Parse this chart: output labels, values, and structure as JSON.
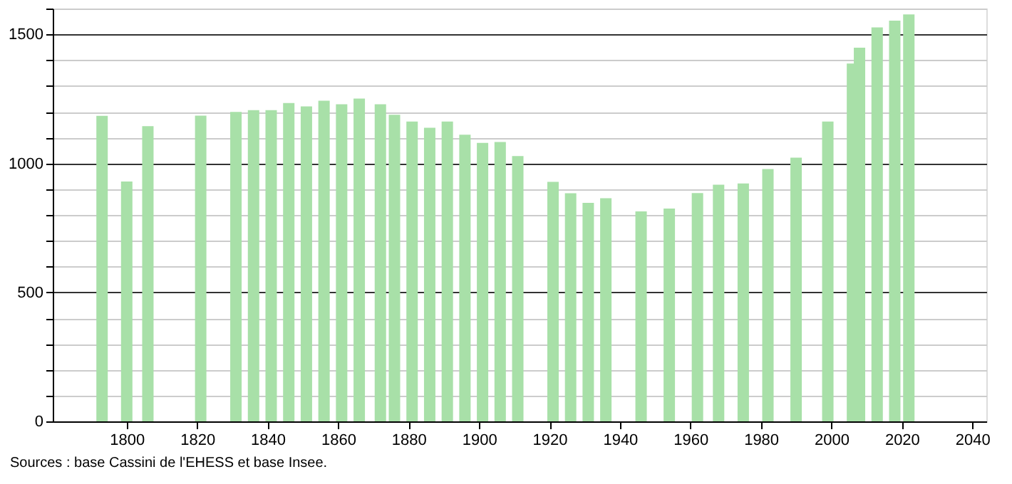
{
  "chart_data": {
    "type": "bar",
    "x": [
      1793,
      1800,
      1806,
      1821,
      1831,
      1836,
      1841,
      1846,
      1851,
      1856,
      1861,
      1866,
      1872,
      1876,
      1881,
      1886,
      1891,
      1896,
      1901,
      1906,
      1911,
      1921,
      1926,
      1931,
      1936,
      1946,
      1954,
      1962,
      1968,
      1975,
      1982,
      1990,
      1999,
      2006,
      2008,
      2013,
      2018,
      2022
    ],
    "values": [
      1184,
      930,
      1144,
      1185,
      1199,
      1206,
      1206,
      1234,
      1221,
      1243,
      1229,
      1251,
      1229,
      1188,
      1162,
      1138,
      1162,
      1111,
      1079,
      1083,
      1028,
      928,
      884,
      847,
      865,
      814,
      825,
      885,
      917,
      922,
      978,
      1022,
      1162,
      1387,
      1448,
      1527,
      1553,
      1577
    ],
    "color": "#a8e0a8",
    "xlim": [
      1779,
      2044
    ],
    "xticks": [
      1800,
      1820,
      1840,
      1860,
      1880,
      1900,
      1920,
      1940,
      1960,
      1980,
      2000,
      2020,
      2040
    ],
    "ylim": [
      0,
      1600
    ],
    "yticks": [
      0,
      {
        "value": 100,
        "label": null
      },
      {
        "value": 200,
        "label": null
      },
      {
        "value": 300,
        "label": null
      },
      {
        "value": 400,
        "label": null
      },
      500,
      {
        "value": 600,
        "label": null
      },
      {
        "value": 700,
        "label": null
      },
      {
        "value": 800,
        "label": null
      },
      {
        "value": 900,
        "label": null
      },
      1000,
      {
        "value": 1100,
        "label": null
      },
      {
        "value": 1200,
        "label": null
      },
      {
        "value": 1300,
        "label": null
      },
      {
        "value": 1400,
        "label": null
      },
      1500,
      {
        "value": 1600,
        "label": null
      }
    ],
    "grid": "y",
    "annotations": [
      "Sources : base Cassini de l'EHESS et base Insee."
    ]
  }
}
